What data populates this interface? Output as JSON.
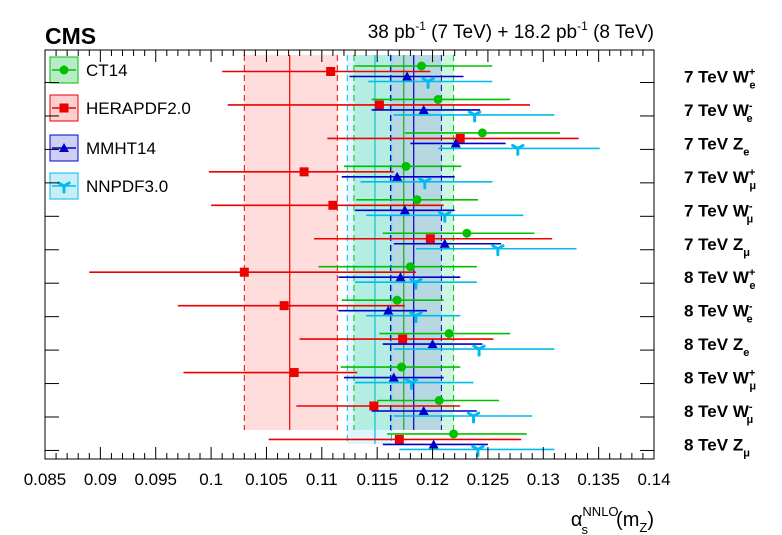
{
  "header": {
    "experiment": "CMS",
    "lumi_parts": [
      "38 pb",
      "-1",
      " (7 TeV) + 18.2 pb",
      "-1",
      " (8 TeV)"
    ]
  },
  "chart_data": {
    "type": "scatter",
    "xlim": [
      0.085,
      0.14
    ],
    "xticks": [
      "0.085",
      "0.09",
      "0.095",
      "0.1",
      "0.105",
      "0.11",
      "0.115",
      "0.12",
      "0.125",
      "0.13",
      "0.135",
      "0.14"
    ],
    "xlabel_parts": {
      "base": "α",
      "sub": "s",
      "sup": "NNLO",
      "arg_open": "(m",
      "arg_sub": "Z",
      "arg_close": ")"
    },
    "grid": false,
    "legend_placement": "top-left",
    "categories": [
      {
        "energy": "7 TeV",
        "boson": "W",
        "sup": "+",
        "sub": "e"
      },
      {
        "energy": "7 TeV",
        "boson": "W",
        "sup": "-",
        "sub": "e"
      },
      {
        "energy": "7 TeV",
        "boson": "Z",
        "sup": "",
        "sub": "e"
      },
      {
        "energy": "7 TeV",
        "boson": "W",
        "sup": "+",
        "sub": "μ"
      },
      {
        "energy": "7 TeV",
        "boson": "W",
        "sup": "-",
        "sub": "μ"
      },
      {
        "energy": "7 TeV",
        "boson": "Z",
        "sup": "",
        "sub": "μ"
      },
      {
        "energy": "8 TeV",
        "boson": "W",
        "sup": "+",
        "sub": "e"
      },
      {
        "energy": "8 TeV",
        "boson": "W",
        "sup": "-",
        "sub": "e"
      },
      {
        "energy": "8 TeV",
        "boson": "Z",
        "sup": "",
        "sub": "e"
      },
      {
        "energy": "8 TeV",
        "boson": "W",
        "sup": "+",
        "sub": "μ"
      },
      {
        "energy": "8 TeV",
        "boson": "W",
        "sup": "-",
        "sub": "μ"
      },
      {
        "energy": "8 TeV",
        "boson": "Z",
        "sup": "",
        "sub": "μ"
      }
    ],
    "series": [
      {
        "name": "CT14",
        "color": "#00c000",
        "marker": "circle",
        "bands": {
          "center": 0.1174,
          "low": 0.1129,
          "high": 0.1219
        },
        "points": [
          {
            "x": 0.119,
            "lo": 0.113,
            "hi": 0.1254
          },
          {
            "x": 0.1205,
            "lo": 0.1145,
            "hi": 0.127
          },
          {
            "x": 0.1245,
            "lo": 0.1175,
            "hi": 0.1315
          },
          {
            "x": 0.1176,
            "lo": 0.112,
            "hi": 0.1226
          },
          {
            "x": 0.1186,
            "lo": 0.1131,
            "hi": 0.1241
          },
          {
            "x": 0.1231,
            "lo": 0.1155,
            "hi": 0.1292
          },
          {
            "x": 0.118,
            "lo": 0.1097,
            "hi": 0.124
          },
          {
            "x": 0.1168,
            "lo": 0.1118,
            "hi": 0.121
          },
          {
            "x": 0.1215,
            "lo": 0.1152,
            "hi": 0.127
          },
          {
            "x": 0.1172,
            "lo": 0.1117,
            "hi": 0.1225
          },
          {
            "x": 0.1206,
            "lo": 0.115,
            "hi": 0.126
          },
          {
            "x": 0.1219,
            "lo": 0.1159,
            "hi": 0.1285
          }
        ]
      },
      {
        "name": "HERAPDF2.0",
        "color": "#ee0000",
        "marker": "square",
        "bands": {
          "center": 0.1071,
          "low": 0.103,
          "high": 0.1114
        },
        "points": [
          {
            "x": 0.1108,
            "lo": 0.101,
            "hi": 0.1198
          },
          {
            "x": 0.1152,
            "lo": 0.1015,
            "hi": 0.1288
          },
          {
            "x": 0.1225,
            "lo": 0.1105,
            "hi": 0.1332
          },
          {
            "x": 0.1084,
            "lo": 0.0998,
            "hi": 0.1165
          },
          {
            "x": 0.111,
            "lo": 0.1,
            "hi": 0.121
          },
          {
            "x": 0.1198,
            "lo": 0.1093,
            "hi": 0.1308
          },
          {
            "x": 0.103,
            "lo": 0.089,
            "hi": 0.1185
          },
          {
            "x": 0.1066,
            "lo": 0.097,
            "hi": 0.1175
          },
          {
            "x": 0.1173,
            "lo": 0.108,
            "hi": 0.1255
          },
          {
            "x": 0.1075,
            "lo": 0.0975,
            "hi": 0.1132
          },
          {
            "x": 0.1147,
            "lo": 0.1077,
            "hi": 0.1225
          },
          {
            "x": 0.117,
            "lo": 0.1052,
            "hi": 0.128
          }
        ]
      },
      {
        "name": "MMHT14",
        "color": "#0000cc",
        "marker": "triangle-up",
        "bands": {
          "center": 0.1183,
          "low": 0.1162,
          "high": 0.1208
        },
        "points": [
          {
            "x": 0.1177,
            "lo": 0.1125,
            "hi": 0.1228
          },
          {
            "x": 0.1192,
            "lo": 0.1145,
            "hi": 0.1243
          },
          {
            "x": 0.1221,
            "lo": 0.118,
            "hi": 0.1266
          },
          {
            "x": 0.1168,
            "lo": 0.1118,
            "hi": 0.122
          },
          {
            "x": 0.1175,
            "lo": 0.113,
            "hi": 0.122
          },
          {
            "x": 0.1211,
            "lo": 0.1165,
            "hi": 0.1262
          },
          {
            "x": 0.1171,
            "lo": 0.1115,
            "hi": 0.1225
          },
          {
            "x": 0.116,
            "lo": 0.1115,
            "hi": 0.1195
          },
          {
            "x": 0.12,
            "lo": 0.1155,
            "hi": 0.1245
          },
          {
            "x": 0.1165,
            "lo": 0.112,
            "hi": 0.121
          },
          {
            "x": 0.1192,
            "lo": 0.1145,
            "hi": 0.124
          },
          {
            "x": 0.1201,
            "lo": 0.1155,
            "hi": 0.125
          }
        ]
      },
      {
        "name": "NNPDF3.0",
        "color": "#00bbee",
        "marker": "tri-star",
        "bands": {
          "center": 0.1148,
          "low": 0.1123,
          "high": 0.1163
        },
        "points": [
          {
            "x": 0.1196,
            "lo": 0.1142,
            "hi": 0.1254
          },
          {
            "x": 0.1238,
            "lo": 0.1165,
            "hi": 0.131
          },
          {
            "x": 0.1277,
            "lo": 0.1205,
            "hi": 0.1351
          },
          {
            "x": 0.1193,
            "lo": 0.1135,
            "hi": 0.1254
          },
          {
            "x": 0.1211,
            "lo": 0.114,
            "hi": 0.1282
          },
          {
            "x": 0.1259,
            "lo": 0.1185,
            "hi": 0.133
          },
          {
            "x": 0.1185,
            "lo": 0.113,
            "hi": 0.124
          },
          {
            "x": 0.1185,
            "lo": 0.114,
            "hi": 0.1225
          },
          {
            "x": 0.1242,
            "lo": 0.1165,
            "hi": 0.131
          },
          {
            "x": 0.1181,
            "lo": 0.113,
            "hi": 0.1237
          },
          {
            "x": 0.1237,
            "lo": 0.1165,
            "hi": 0.129
          },
          {
            "x": 0.1241,
            "lo": 0.117,
            "hi": 0.131
          }
        ]
      }
    ]
  }
}
